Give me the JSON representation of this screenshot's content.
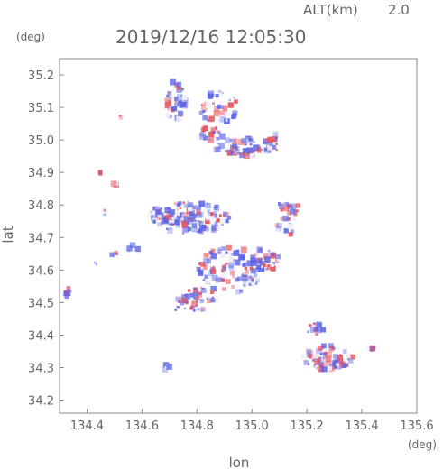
{
  "header": {
    "alt_label": "ALT(km)",
    "alt_value": "2.0",
    "timestamp": "2019/12/16 12:05:30"
  },
  "colors": {
    "positive": "#e8505b",
    "negative": "#5a64e6",
    "neutral": "#f0f0fa",
    "axis": "#888888"
  },
  "chart_data": {
    "type": "scatter",
    "title": "2019/12/16 12:05:30",
    "xlabel": "lon",
    "ylabel": "lat",
    "x_unit": "(deg)",
    "y_unit": "(deg)",
    "xlim": [
      134.3,
      135.6
    ],
    "ylim": [
      34.16,
      35.25
    ],
    "x_ticks": [
      134.4,
      134.6,
      134.8,
      135.0,
      135.2,
      135.4,
      135.6
    ],
    "x_tick_labels": [
      "134.4",
      "134.6",
      "134.8",
      "135.0",
      "135.2",
      "135.4",
      "135.6"
    ],
    "y_ticks": [
      34.2,
      34.3,
      34.4,
      34.5,
      34.6,
      34.7,
      34.8,
      34.9,
      35.0,
      35.1,
      35.2
    ],
    "y_tick_labels": [
      "34.2",
      "34.3",
      "34.4",
      "34.5",
      "34.6",
      "34.7",
      "34.8",
      "34.9",
      "35.0",
      "35.1",
      "35.2"
    ],
    "grid": false,
    "clusters": [
      {
        "lon": 134.72,
        "lat": 35.12,
        "rx": 0.04,
        "ry": 0.06,
        "n": 40,
        "mix": 0.5
      },
      {
        "lon": 134.88,
        "lat": 35.1,
        "rx": 0.07,
        "ry": 0.05,
        "n": 40,
        "mix": 0.6
      },
      {
        "lon": 134.98,
        "lat": 34.98,
        "rx": 0.12,
        "ry": 0.03,
        "n": 70,
        "mix": 0.5
      },
      {
        "lon": 134.85,
        "lat": 35.02,
        "rx": 0.05,
        "ry": 0.02,
        "n": 20,
        "mix": 0.5
      },
      {
        "lon": 134.78,
        "lat": 34.76,
        "rx": 0.14,
        "ry": 0.05,
        "n": 130,
        "mix": 0.45
      },
      {
        "lon": 134.68,
        "lat": 34.77,
        "rx": 0.05,
        "ry": 0.03,
        "n": 30,
        "mix": 0.4
      },
      {
        "lon": 135.12,
        "lat": 34.76,
        "rx": 0.04,
        "ry": 0.06,
        "n": 30,
        "mix": 0.5
      },
      {
        "lon": 134.92,
        "lat": 34.6,
        "rx": 0.12,
        "ry": 0.07,
        "n": 110,
        "mix": 0.55
      },
      {
        "lon": 134.8,
        "lat": 34.51,
        "rx": 0.07,
        "ry": 0.04,
        "n": 50,
        "mix": 0.55
      },
      {
        "lon": 135.05,
        "lat": 34.63,
        "rx": 0.05,
        "ry": 0.04,
        "n": 30,
        "mix": 0.6
      },
      {
        "lon": 135.28,
        "lat": 34.33,
        "rx": 0.09,
        "ry": 0.04,
        "n": 90,
        "mix": 0.6
      },
      {
        "lon": 135.23,
        "lat": 34.42,
        "rx": 0.03,
        "ry": 0.02,
        "n": 15,
        "mix": 0.5
      },
      {
        "lon": 134.33,
        "lat": 34.53,
        "rx": 0.01,
        "ry": 0.015,
        "n": 8,
        "mix": 0.7
      },
      {
        "lon": 134.69,
        "lat": 34.3,
        "rx": 0.01,
        "ry": 0.015,
        "n": 8,
        "mix": 0.7
      },
      {
        "lon": 134.45,
        "lat": 34.9,
        "rx": 0.006,
        "ry": 0.006,
        "n": 3,
        "mix": 1.0
      },
      {
        "lon": 134.52,
        "lat": 35.07,
        "rx": 0.005,
        "ry": 0.005,
        "n": 2,
        "mix": 1.0
      },
      {
        "lon": 134.5,
        "lat": 34.65,
        "rx": 0.01,
        "ry": 0.01,
        "n": 4,
        "mix": 0.5
      },
      {
        "lon": 134.57,
        "lat": 34.66,
        "rx": 0.02,
        "ry": 0.02,
        "n": 6,
        "mix": 0.5
      },
      {
        "lon": 134.47,
        "lat": 34.78,
        "rx": 0.01,
        "ry": 0.01,
        "n": 4,
        "mix": 0.5
      },
      {
        "lon": 134.5,
        "lat": 34.87,
        "rx": 0.01,
        "ry": 0.01,
        "n": 3,
        "mix": 0.3
      },
      {
        "lon": 134.43,
        "lat": 34.62,
        "rx": 0.008,
        "ry": 0.008,
        "n": 2,
        "mix": 0.5
      },
      {
        "lon": 135.44,
        "lat": 34.36,
        "rx": 0.02,
        "ry": 0.01,
        "n": 6,
        "mix": 0.5
      },
      {
        "lon": 134.73,
        "lat": 34.48,
        "rx": 0.01,
        "ry": 0.01,
        "n": 3,
        "mix": 0.4
      },
      {
        "lon": 135.15,
        "lat": 34.79,
        "rx": 0.02,
        "ry": 0.02,
        "n": 8,
        "mix": 0.6
      },
      {
        "lon": 135.08,
        "lat": 35.0,
        "rx": 0.03,
        "ry": 0.02,
        "n": 12,
        "mix": 0.6
      }
    ]
  }
}
